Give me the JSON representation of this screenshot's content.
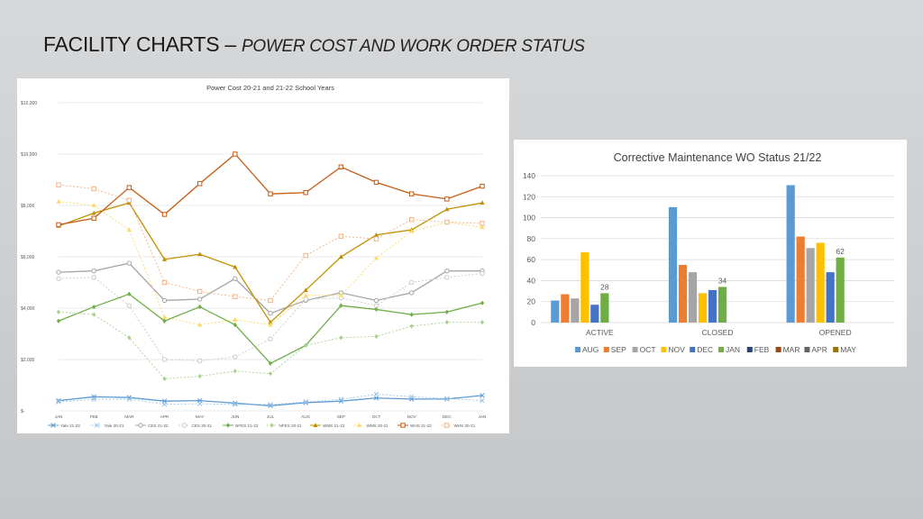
{
  "slide": {
    "title_main": "FACILITY CHARTS –",
    "title_sub": "POWER COST AND WORK ORDER STATUS"
  },
  "chart_data": [
    {
      "type": "line",
      "title": "Power Cost 20-21 and 21-22 School Years",
      "categories": [
        "JAN",
        "FEB",
        "MAR",
        "APR",
        "MAY",
        "JUN",
        "JUL",
        "AUG",
        "SEP",
        "OCT",
        "NOV",
        "DEC",
        "JAN"
      ],
      "ylim": [
        0,
        12000
      ],
      "yticks": [
        0,
        2000,
        4000,
        6000,
        8000,
        10000,
        12000
      ],
      "ytick_labels": [
        "$-",
        "$2,000",
        "$4,000",
        "$6,000",
        "$8,000",
        "$10,000",
        "$12,000"
      ],
      "grid": true,
      "legend_position": "bottom",
      "series": [
        {
          "name": "Yale 21-22",
          "color": "#5b9bd5",
          "marker": "x",
          "dash": "",
          "values": [
            400,
            550,
            520,
            380,
            400,
            300,
            200,
            320,
            380,
            500,
            460,
            460,
            600
          ]
        },
        {
          "name": "Yale 20-21",
          "color": "#9dc3e6",
          "marker": "x",
          "dash": "2,2",
          "values": [
            350,
            450,
            450,
            260,
            280,
            250,
            250,
            350,
            450,
            650,
            550,
            480,
            400
          ]
        },
        {
          "name": "CES 21-22",
          "color": "#a5a5a5",
          "marker": "o",
          "dash": "",
          "values": [
            5400,
            5450,
            5750,
            4300,
            4350,
            5150,
            3800,
            4300,
            4600,
            4300,
            4600,
            5450,
            5450
          ]
        },
        {
          "name": "CES 20-21",
          "color": "#c9c9c9",
          "marker": "o",
          "dash": "2,2",
          "values": [
            5150,
            5200,
            4100,
            2000,
            1950,
            2100,
            2800,
            4350,
            4400,
            4100,
            5000,
            5200,
            5350
          ]
        },
        {
          "name": "NFES 21-22",
          "color": "#70ad47",
          "marker": "d",
          "dash": "",
          "values": [
            3500,
            4050,
            4550,
            3500,
            4050,
            3350,
            1850,
            2550,
            4100,
            3950,
            3750,
            3850,
            4200
          ]
        },
        {
          "name": "NFES 20-21",
          "color": "#a9d18e",
          "marker": "d",
          "dash": "2,2",
          "values": [
            3850,
            3750,
            2850,
            1250,
            1350,
            1550,
            1450,
            2550,
            2850,
            2900,
            3300,
            3450,
            3450
          ]
        },
        {
          "name": "WMS 21-22",
          "color": "#bf9000",
          "marker": "t",
          "dash": "",
          "values": [
            7200,
            7700,
            8100,
            5900,
            6100,
            5600,
            3450,
            4700,
            6000,
            6850,
            7050,
            7850,
            8100
          ]
        },
        {
          "name": "WMS 20-21",
          "color": "#ffd966",
          "marker": "t",
          "dash": "2,2",
          "values": [
            8150,
            8000,
            7050,
            3650,
            3350,
            3550,
            3350,
            4500,
            4500,
            5950,
            7000,
            7350,
            7150
          ]
        },
        {
          "name": "WHS 21-22",
          "color": "#c55a11",
          "marker": "s",
          "dash": "",
          "values": [
            7250,
            7500,
            8700,
            7650,
            8850,
            10000,
            8450,
            8500,
            9500,
            8900,
            8450,
            8250,
            8750
          ]
        },
        {
          "name": "WHS 20-21",
          "color": "#f4b183",
          "marker": "s",
          "dash": "2,2",
          "values": [
            8800,
            8650,
            8200,
            5000,
            4650,
            4450,
            4300,
            6050,
            6800,
            6700,
            7450,
            7350,
            7300
          ]
        }
      ]
    },
    {
      "type": "bar",
      "title": "Corrective Maintenance WO Status 21/22",
      "categories": [
        "ACTIVE",
        "CLOSED",
        "OPENED"
      ],
      "ylim": [
        0,
        140
      ],
      "yticks": [
        0,
        20,
        40,
        60,
        80,
        100,
        120,
        140
      ],
      "grid": true,
      "legend_position": "bottom",
      "series": [
        {
          "name": "AUG",
          "color": "#5b9bd5",
          "values": [
            21,
            110,
            131
          ]
        },
        {
          "name": "SEP",
          "color": "#ed7d31",
          "values": [
            27,
            55,
            82
          ]
        },
        {
          "name": "OCT",
          "color": "#a5a5a5",
          "values": [
            23,
            48,
            71
          ]
        },
        {
          "name": "NOV",
          "color": "#ffc000",
          "values": [
            67,
            28,
            76
          ]
        },
        {
          "name": "DEC",
          "color": "#4472c4",
          "values": [
            17,
            31,
            48
          ]
        },
        {
          "name": "JAN",
          "color": "#70ad47",
          "values": [
            28,
            34,
            62
          ]
        },
        {
          "name": "FEB",
          "color": "#264478",
          "values": [
            null,
            null,
            null
          ]
        },
        {
          "name": "MAR",
          "color": "#9e480e",
          "values": [
            null,
            null,
            null
          ]
        },
        {
          "name": "APR",
          "color": "#636363",
          "values": [
            null,
            null,
            null
          ]
        },
        {
          "name": "MAY",
          "color": "#997300",
          "values": [
            null,
            null,
            null
          ]
        }
      ],
      "data_labels": [
        {
          "series": "JAN",
          "category": "ACTIVE",
          "text": "28"
        },
        {
          "series": "JAN",
          "category": "CLOSED",
          "text": "34"
        },
        {
          "series": "JAN",
          "category": "OPENED",
          "text": "62"
        }
      ]
    }
  ]
}
